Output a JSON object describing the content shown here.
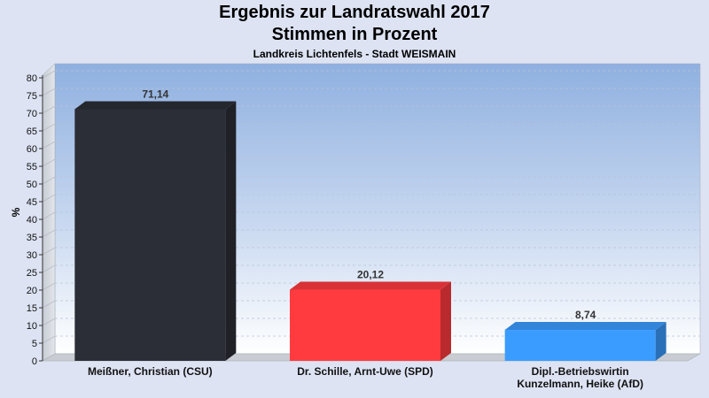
{
  "header": {
    "title_line1": "Ergebnis zur Landratswahl 2017",
    "title_line2": "Stimmen in Prozent",
    "subtitle": "Landkreis Lichtenfels - Stadt WEISMAIN"
  },
  "chart_data": {
    "type": "bar",
    "title": "Ergebnis zur Landratswahl 2017 Stimmen in Prozent",
    "subtitle": "Landkreis Lichtenfels - Stadt WEISMAIN",
    "xlabel": "",
    "ylabel": "%",
    "ylim": [
      0,
      80
    ],
    "yticks": [
      0,
      5,
      10,
      15,
      20,
      25,
      30,
      35,
      40,
      45,
      50,
      55,
      60,
      65,
      70,
      75,
      80
    ],
    "grid": true,
    "categories": [
      [
        "Meißner, Christian (CSU)"
      ],
      [
        "Dr. Schille, Arnt-Uwe (SPD)"
      ],
      [
        "Dipl.-Betriebswirtin",
        "Kunzelmann, Heike (AfD)"
      ]
    ],
    "values": [
      71.14,
      20.12,
      8.74
    ],
    "value_labels": [
      "71,14",
      "20,12",
      "8,74"
    ],
    "colors": [
      "#2b2e36",
      "#ff3b3f",
      "#3b9cff"
    ]
  }
}
